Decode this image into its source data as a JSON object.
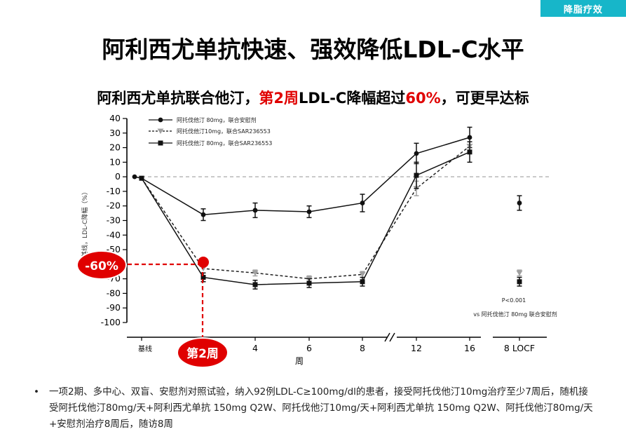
{
  "tag": "降脂疗效",
  "title": "阿利西尤单抗快速、强效降低LDL-C水平",
  "subtitle": {
    "part1": "阿利西尤单抗联合他汀，",
    "part2": "第2周",
    "part3": "LDL-C降幅超过",
    "part4": "60%",
    "part5": "，可更早达标"
  },
  "colors": {
    "tag_bg": "#17b6c9",
    "highlight": "#e00000",
    "series_dark": "#111111",
    "series_gray": "#a0a0a0"
  },
  "callouts": {
    "minus60": "-60%",
    "week2": "第2周"
  },
  "chart_data": {
    "type": "line",
    "ylabel": "基线，LDL-C降幅（%）",
    "xlabel": "周",
    "ylim": [
      -100,
      40
    ],
    "yticks": [
      40,
      30,
      20,
      10,
      0,
      -10,
      -20,
      -30,
      -40,
      -50,
      -60,
      -70,
      -80,
      -90,
      -100
    ],
    "x_ticks": [
      "基线",
      "4",
      "6",
      "8",
      "12",
      "16",
      "8 LOCF"
    ],
    "reference_line": 0,
    "series": [
      {
        "name": "阿托伐他汀 80mg，联合安慰剂",
        "marker": "circle",
        "style": "solid",
        "color": "#111111",
        "points": [
          {
            "week": 0,
            "value": 0
          },
          {
            "week": 0.3,
            "value": -1
          },
          {
            "week": 2,
            "value": -26,
            "err": 4
          },
          {
            "week": 4,
            "value": -23,
            "err": 5
          },
          {
            "week": 6,
            "value": -24,
            "err": 4
          },
          {
            "week": 8,
            "value": -18,
            "err": 6
          },
          {
            "week": 12,
            "value": 16,
            "err": 7
          },
          {
            "week": 16,
            "value": 27,
            "err": 7
          }
        ],
        "locf": {
          "value": -18,
          "err": 5
        }
      },
      {
        "name": "阿托伐他汀10mg，联合SAR236553",
        "marker": "triangle-down",
        "style": "dashed",
        "color": "#a0a0a0",
        "points": [
          {
            "week": 0.3,
            "value": -1
          },
          {
            "week": 2,
            "value": -63
          },
          {
            "week": 4,
            "value": -66,
            "err": 2
          },
          {
            "week": 6,
            "value": -70,
            "err": 2
          },
          {
            "week": 8,
            "value": -67,
            "err": 2
          },
          {
            "week": 12,
            "value": -8,
            "err": 5
          },
          {
            "week": 16,
            "value": 21,
            "err": 3
          }
        ],
        "locf": {
          "value": -66,
          "err": 2
        }
      },
      {
        "name": "阿托伐他汀 80mg，联合SAR236553",
        "marker": "square",
        "style": "solid",
        "color": "#111111",
        "points": [
          {
            "week": 0.3,
            "value": -1
          },
          {
            "week": 2,
            "value": -69,
            "err": 3
          },
          {
            "week": 4,
            "value": -74,
            "err": 3
          },
          {
            "week": 6,
            "value": -73,
            "err": 3
          },
          {
            "week": 8,
            "value": -72,
            "err": 3
          },
          {
            "week": 12,
            "value": 1,
            "err": 9
          },
          {
            "week": 16,
            "value": 17,
            "err": 7
          }
        ],
        "locf": {
          "value": -72,
          "err": 3
        }
      }
    ],
    "annotations": [
      "P<0.001",
      "vs 阿托伐他汀 80mg 联合安慰剂"
    ]
  },
  "footnote": "一项2期、多中心、双盲、安慰剂对照试验，纳入92例LDL-C≥100mg/dl的患者，接受阿托伐他汀10mg治疗至少7周后，随机接受阿托伐他汀80mg/天+阿利西尤单抗 150mg Q2W、阿托伐他汀10mg/天+阿利西尤单抗 150mg Q2W、阿托伐他汀80mg/天+安慰剂治疗8周后，随访8周"
}
